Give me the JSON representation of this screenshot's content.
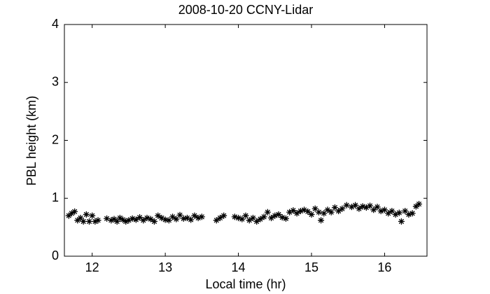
{
  "chart_data": {
    "type": "scatter",
    "title": "2008-10-20 CCNY-Lidar",
    "x_label": "Local time (hr)",
    "y_label": "PBL height (km)",
    "marker": "asterisk",
    "color": "#000000",
    "xlim": [
      11.62,
      16.58
    ],
    "ylim": [
      0,
      4
    ],
    "xticks": [
      12,
      13,
      14,
      15,
      16
    ],
    "yticks": [
      0,
      1,
      2,
      3,
      4
    ],
    "x": [
      11.68,
      11.72,
      11.76,
      11.8,
      11.84,
      11.88,
      11.92,
      11.96,
      12.0,
      12.04,
      12.08,
      12.2,
      12.26,
      12.3,
      12.34,
      12.38,
      12.42,
      12.46,
      12.5,
      12.55,
      12.6,
      12.65,
      12.7,
      12.75,
      12.8,
      12.85,
      12.9,
      12.95,
      13.0,
      13.05,
      13.1,
      13.15,
      13.2,
      13.25,
      13.3,
      13.35,
      13.4,
      13.45,
      13.5,
      13.7,
      13.75,
      13.8,
      13.95,
      14.0,
      14.05,
      14.1,
      14.15,
      14.2,
      14.25,
      14.3,
      14.35,
      14.4,
      14.45,
      14.5,
      14.55,
      14.6,
      14.65,
      14.7,
      14.75,
      14.8,
      14.85,
      14.9,
      14.95,
      15.0,
      15.05,
      15.1,
      15.13,
      15.17,
      15.22,
      15.27,
      15.32,
      15.37,
      15.42,
      15.48,
      15.55,
      15.6,
      15.65,
      15.7,
      15.75,
      15.8,
      15.85,
      15.9,
      15.95,
      16.0,
      16.05,
      16.1,
      16.15,
      16.2,
      16.23,
      16.28,
      16.33,
      16.38,
      16.43,
      16.47
    ],
    "values": [
      0.7,
      0.74,
      0.77,
      0.62,
      0.66,
      0.6,
      0.72,
      0.6,
      0.7,
      0.6,
      0.62,
      0.65,
      0.62,
      0.64,
      0.6,
      0.66,
      0.63,
      0.6,
      0.62,
      0.65,
      0.63,
      0.67,
      0.62,
      0.66,
      0.64,
      0.6,
      0.7,
      0.66,
      0.63,
      0.62,
      0.68,
      0.64,
      0.71,
      0.65,
      0.66,
      0.63,
      0.7,
      0.66,
      0.68,
      0.62,
      0.66,
      0.7,
      0.68,
      0.66,
      0.64,
      0.7,
      0.62,
      0.66,
      0.6,
      0.64,
      0.68,
      0.76,
      0.66,
      0.7,
      0.72,
      0.67,
      0.65,
      0.76,
      0.79,
      0.74,
      0.78,
      0.8,
      0.77,
      0.72,
      0.82,
      0.76,
      0.62,
      0.74,
      0.8,
      0.76,
      0.84,
      0.78,
      0.82,
      0.88,
      0.85,
      0.88,
      0.82,
      0.86,
      0.84,
      0.87,
      0.8,
      0.85,
      0.78,
      0.8,
      0.74,
      0.78,
      0.72,
      0.75,
      0.6,
      0.78,
      0.72,
      0.74,
      0.86,
      0.9
    ]
  }
}
